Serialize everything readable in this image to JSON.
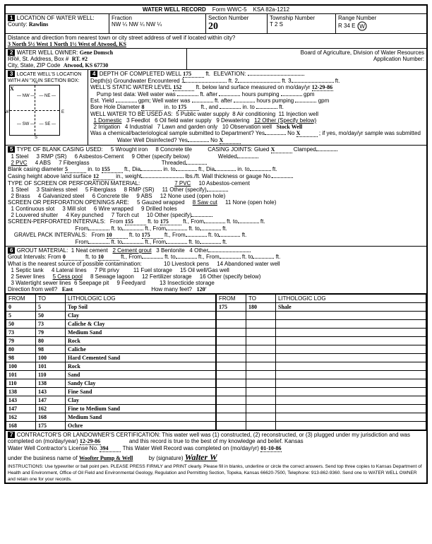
{
  "header": {
    "title": "WATER WELL RECORD",
    "form": "Form WWC-5",
    "ksa": "KSA 82a-1212"
  },
  "s1": {
    "label": "LOCATION OF WATER WELL:",
    "county_lbl": "County:",
    "county": "Rawlins",
    "fraction_lbl": "Fraction",
    "fraction": "NW ¼    NW ¼    NW ¼",
    "section_lbl": "Section Number",
    "section": "20",
    "township_lbl": "Township Number",
    "township": "T    2    S",
    "range_lbl": "Range Number",
    "range": "R    34    E",
    "range_w": "W",
    "dist_lbl": "Distance and direction from nearest town or city street address of well if located within city?",
    "dist": "3 North 5½ West 1 North 1½ West of Atwood, KS"
  },
  "s2": {
    "owner_lbl": "WATER WELL OWNER:",
    "owner": "Gene Domsch",
    "addr_lbl": "RR#, St. Address, Box #",
    "addr": "RT. #2",
    "csz_lbl": "City, State, ZIP Code",
    "csz": "Atwood, KS  67730",
    "board": "Board of Agriculture, Division of Water Resources",
    "appnum": "Application Number:"
  },
  "s3": {
    "label": "LOCATE WELL'S LOCATION WITH AN \"X\" IN SECTION BOX:",
    "x": "X",
    "n": "N",
    "nw": "NW",
    "ne": "NE",
    "w": "W",
    "e": "E",
    "sw": "SW",
    "se": "SE",
    "s": "S",
    "mile": "1 Mile"
  },
  "s4": {
    "depth_lbl": "DEPTH OF COMPLETED WELL",
    "depth": "175",
    "ft": "ft.",
    "elev": "ELEVATION:",
    "gw1": "Depth(s) Groundwater Encountered  1",
    "gw2": "ft.  2",
    "gw3": "ft.  3",
    "swl_lbl": "WELL'S STATIC WATER LEVEL",
    "swl": "152",
    "swl2": "ft. below land surface measured on mo/day/yr",
    "swl_date": "12-29-86",
    "pump": "Pump test data:  Well water was",
    "after": "ft. after",
    "hours": "hours pumping",
    "gpm": "gpm",
    "est": "Est. Yield",
    "est2": "gpm; Well water was",
    "bore": "Bore Hole Diameter",
    "bore_d": "8",
    "bore_to": "175",
    "into": "in. to",
    "ftand": "ft., and",
    "use_lbl": "WELL WATER TO BE USED AS:",
    "u1": "1 Domestic",
    "u2": "2 Irrigation",
    "u3": "3 Feedlot",
    "u4": "4 Industrial",
    "u5": "5 Public water supply",
    "u6": "6 Oil field water supply",
    "u7": "7 Lawn and garden only",
    "u8": "8 Air conditioning",
    "u9": "9 Dewatering",
    "u10": "10 Observation well",
    "u11": "11 Injection well",
    "u12": "12 Other (Specify below)",
    "other_use": "Stock Well",
    "chem": "Was a chemical/bacteriological sample submitted to Department?  Yes",
    "chem_no": "No",
    "chem_x": "X",
    "chem2": "; if yes, mo/day/yr sample was submitted",
    "disinf": "Water Well Disinfected?  Yes",
    "disinf_no": "No",
    "disinf_x": "X"
  },
  "s5": {
    "label": "TYPE OF BLANK CASING USED:",
    "o1": "1 Steel",
    "o2": "2 PVC",
    "o3": "3 RMP (SR)",
    "o4": "4 ABS",
    "o5": "5 Wrought iron",
    "o6": "6 Asbestos-Cement",
    "o7": "7 Fiberglass",
    "o8": "8 Concrete tile",
    "o9": "9 Other (specify below)",
    "cj": "CASING JOINTS:  Glued",
    "cj_x": "X",
    "cj2": "Clamped",
    "cj3": "Welded",
    "cj4": "Threaded",
    "bcd": "Blank casing diameter",
    "bcd_v": "5",
    "bcd_to": "155",
    "dia": "ft., Dia",
    "cha": "Casing height above land surface",
    "cha_v": "12",
    "cha2": "in., weight",
    "cha3": "lbs./ft. Wall thickness or gauge No.",
    "perf": "TYPE OF SCREEN OR PERFORATION MATERIAL:",
    "p1": "1 Steel",
    "p2": "2 Brass",
    "p3": "3 Stainless steel",
    "p4": "4 Galvanized steel",
    "p5": "5 Fiberglass",
    "p6": "6 Concrete tile",
    "p7": "7 PVC",
    "p8": "8 RMP (SR)",
    "p9": "9 ABS",
    "p10": "10 Asbestos-cement",
    "p11": "11 Other (specify)",
    "p12": "12 None used (open hole)",
    "open": "SCREEN OR PERFORATION OPENINGS ARE:",
    "op1": "1 Continuous slot",
    "op2": "2 Louvered shutter",
    "op3": "3 Mill slot",
    "op4": "4 Key punched",
    "op5": "5 Gauzed wrapped",
    "op6": "6 Wire wrapped",
    "op7": "7 Torch cut",
    "op8": "8 Saw cut",
    "op9": "9 Drilled holes",
    "op10": "10 Other (specify)",
    "op11": "11 None (open hole)",
    "spi": "SCREEN-PERFORATED INTERVALS:",
    "spi_from": "155",
    "spi_to": "175",
    "gpi": "GRAVEL PACK INTERVALS:",
    "gpi_from": "10",
    "gpi_to": "175",
    "from": "From",
    "to": "ft. to",
    "ftfrom": "ft., From"
  },
  "s6": {
    "label": "GROUT MATERIAL:",
    "g1": "1 Neat cement",
    "g2": "2 Cement grout",
    "g3": "3 Bentonite",
    "g4": "4 Other",
    "gi": "Grout Intervals:  From",
    "gi_f": "0",
    "gi_t": "10",
    "near": "What is the nearest source of possible contamination:",
    "c1": "1 Septic tank",
    "c2": "2 Sewer lines",
    "c3": "3 Watertight sewer lines",
    "c4": "4 Lateral lines",
    "c5": "5 Cess pool",
    "c6": "6 Seepage pit",
    "c7": "7 Pit privy",
    "c8": "8 Sewage lagoon",
    "c9": "9 Feedyard",
    "c10": "10 Livestock pens",
    "c11": "11 Fuel storage",
    "c12": "12 Fertilizer storage",
    "c13": "13 Insecticide storage",
    "c14": "14 Abandoned water well",
    "c15": "15 Oil well/Gas well",
    "c16": "16 Other (specify below)",
    "dir": "Direction from well?",
    "dir_v": "East",
    "feet": "How many feet?",
    "feet_v": "120'"
  },
  "log": {
    "h_from": "FROM",
    "h_to": "TO",
    "h_lith": "LITHOLOGIC LOG",
    "rows_l": [
      [
        "0",
        "5",
        "Top Soil"
      ],
      [
        "5",
        "50",
        "Clay"
      ],
      [
        "50",
        "73",
        "Caliche & Clay"
      ],
      [
        "73",
        "79",
        "Medium Sand"
      ],
      [
        "79",
        "80",
        "Rock"
      ],
      [
        "80",
        "98",
        "Caliche"
      ],
      [
        "98",
        "100",
        "Hard Cemented Sand"
      ],
      [
        "100",
        "101",
        "Rock"
      ],
      [
        "101",
        "110",
        "Sand"
      ],
      [
        "110",
        "138",
        "Sandy Clay"
      ],
      [
        "138",
        "143",
        "Fine Sand"
      ],
      [
        "143",
        "147",
        "Clay"
      ],
      [
        "147",
        "162",
        "Fine to Medium Sand"
      ],
      [
        "162",
        "168",
        "Medium Sand"
      ],
      [
        "168",
        "175",
        "Ochre"
      ]
    ],
    "rows_r": [
      [
        "175",
        "180",
        "Shale"
      ]
    ]
  },
  "s7": {
    "label": "CONTRACTOR'S OR LANDOWNER'S CERTIFICATION: This water well was (1) constructed, (2) reconstructed, or (3) plugged under my jurisdiction and was",
    "comp": "completed on (mo/day/year)",
    "comp_v": "12-29-86",
    "rec": "and this record is true to the best of my knowledge and belief. Kansas",
    "lic": "Water Well Contractor's License No.",
    "lic_v": "394",
    "lic2": "This Water Well Record was completed on (mo/day/yr)",
    "lic_date": "01-10-86",
    "bus": "under the business name of",
    "bus_v": "Woofter Pump & Well",
    "sig": "by (signature)",
    "instr": "INSTRUCTIONS: Use typewriter or ball point pen. PLEASE PRESS FIRMLY and PRINT clearly. Please fill in blanks, underline or circle the correct answers. Send top three copies to Kansas Department of Health and Environment, Office of Oil Field and Environmental Geology, Regulation and Permitting Section, Topeka, Kansas 66620-7500, Telephone: 913-862-9360. Send one to WATER WELL OWNER and retain one for your records."
  }
}
